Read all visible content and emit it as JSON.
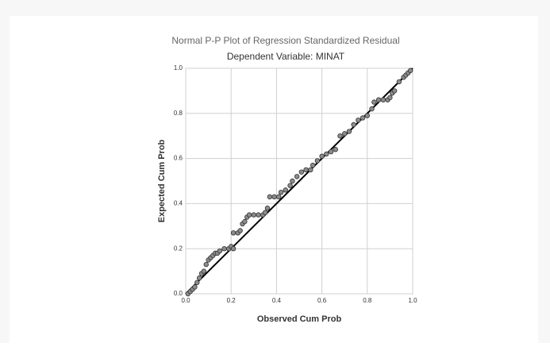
{
  "chart_data": {
    "type": "scatter",
    "title": "Normal P-P Plot of Regression Standardized Residual",
    "subtitle": "Dependent Variable: MINAT",
    "x_label": "Observed Cum Prob",
    "y_label": "Expected Cum Prob",
    "x": [
      0.01,
      0.02,
      0.03,
      0.04,
      0.05,
      0.06,
      0.07,
      0.08,
      0.09,
      0.1,
      0.11,
      0.12,
      0.13,
      0.14,
      0.15,
      0.17,
      0.19,
      0.2,
      0.21,
      0.21,
      0.23,
      0.24,
      0.25,
      0.26,
      0.27,
      0.28,
      0.3,
      0.32,
      0.34,
      0.35,
      0.36,
      0.37,
      0.39,
      0.41,
      0.42,
      0.44,
      0.46,
      0.47,
      0.49,
      0.51,
      0.53,
      0.55,
      0.56,
      0.58,
      0.6,
      0.62,
      0.64,
      0.66,
      0.68,
      0.7,
      0.72,
      0.74,
      0.76,
      0.78,
      0.8,
      0.82,
      0.83,
      0.85,
      0.87,
      0.89,
      0.9,
      0.91,
      0.92,
      0.94,
      0.96,
      0.97,
      0.98,
      0.99
    ],
    "values": [
      0.0,
      0.01,
      0.02,
      0.03,
      0.05,
      0.07,
      0.09,
      0.1,
      0.13,
      0.15,
      0.16,
      0.17,
      0.18,
      0.18,
      0.19,
      0.2,
      0.2,
      0.21,
      0.2,
      0.27,
      0.27,
      0.28,
      0.31,
      0.32,
      0.34,
      0.35,
      0.35,
      0.35,
      0.35,
      0.36,
      0.38,
      0.43,
      0.43,
      0.43,
      0.45,
      0.46,
      0.48,
      0.5,
      0.52,
      0.54,
      0.55,
      0.55,
      0.57,
      0.59,
      0.61,
      0.62,
      0.63,
      0.64,
      0.7,
      0.71,
      0.72,
      0.75,
      0.77,
      0.78,
      0.79,
      0.82,
      0.85,
      0.86,
      0.86,
      0.86,
      0.87,
      0.89,
      0.9,
      0.94,
      0.96,
      0.97,
      0.98,
      0.99
    ],
    "color": "#8c8c8c",
    "xlim": [
      0,
      1
    ],
    "ylim": [
      0,
      1
    ],
    "xticks": [
      {
        "value": 0,
        "label": "0.0"
      },
      0.2,
      0.4,
      0.6,
      0.8,
      {
        "value": 1,
        "label": "1.0"
      }
    ],
    "yticks": [
      {
        "value": 0,
        "label": "0.0"
      },
      0.2,
      0.4,
      0.6,
      0.8,
      {
        "value": 1,
        "label": "1.0"
      }
    ],
    "grid": true
  }
}
